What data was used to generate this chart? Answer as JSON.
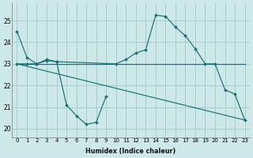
{
  "bg_color": "#cde8e8",
  "grid_color": "#a8cccc",
  "line_color": "#1a7070",
  "xlabel": "Humidex (Indice chaleur)",
  "xlim": [
    -0.5,
    23.5
  ],
  "ylim": [
    19.6,
    25.8
  ],
  "xticks": [
    0,
    1,
    2,
    3,
    4,
    5,
    6,
    7,
    8,
    9,
    10,
    11,
    12,
    13,
    14,
    15,
    16,
    17,
    18,
    19,
    20,
    21,
    22,
    23
  ],
  "yticks": [
    20,
    21,
    22,
    23,
    24,
    25
  ],
  "series": [
    {
      "x": [
        0,
        1,
        2,
        3,
        4,
        5,
        6,
        7,
        8,
        9
      ],
      "y": [
        24.5,
        23.3,
        23.0,
        23.2,
        23.1,
        21.1,
        20.6,
        20.2,
        20.3,
        21.5
      ],
      "marker": true
    },
    {
      "x": [
        0,
        1,
        2,
        3,
        4,
        10,
        11,
        12,
        13,
        14,
        15,
        16,
        17,
        18,
        19,
        20,
        21,
        22,
        23
      ],
      "y": [
        23.0,
        23.0,
        23.0,
        23.15,
        23.1,
        23.0,
        23.2,
        23.5,
        23.65,
        25.25,
        25.2,
        24.7,
        24.3,
        23.7,
        23.0,
        23.0,
        21.8,
        21.6,
        20.4
      ],
      "marker": true
    },
    {
      "x": [
        0,
        23
      ],
      "y": [
        23.0,
        23.0
      ],
      "marker": false
    },
    {
      "x": [
        0,
        23
      ],
      "y": [
        23.0,
        20.4
      ],
      "marker": false
    }
  ]
}
